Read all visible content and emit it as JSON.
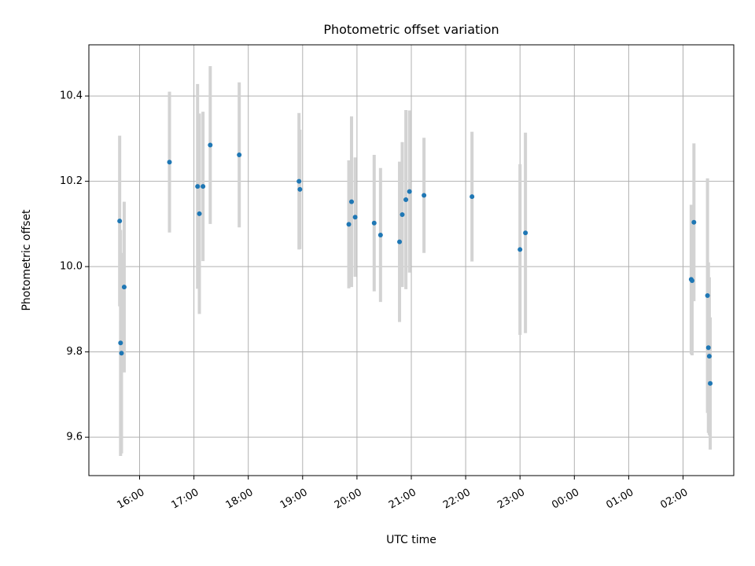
{
  "chart_data": {
    "type": "scatter",
    "title": "Photometric offset variation",
    "xlabel": "UTC time",
    "ylabel": "Photometric offset",
    "x_ticks": [
      "16:00",
      "17:00",
      "18:00",
      "19:00",
      "20:00",
      "21:00",
      "22:00",
      "23:00",
      "00:00",
      "01:00",
      "02:00"
    ],
    "y_ticks": [
      "9.6",
      "9.8",
      "10.0",
      "10.2",
      "10.4"
    ],
    "xlim": [
      "15:04",
      "02:56"
    ],
    "ylim": [
      9.51,
      10.52
    ],
    "grid": true,
    "colors": {
      "points": "#1f77b4",
      "errorbars": "#d3d3d3"
    },
    "points": [
      {
        "x": "15:38",
        "y": 10.107,
        "err": 0.2
      },
      {
        "x": "15:39",
        "y": 9.821,
        "err": 0.265
      },
      {
        "x": "15:40",
        "y": 9.797,
        "err": 0.235
      },
      {
        "x": "15:43",
        "y": 9.952,
        "err": 0.2
      },
      {
        "x": "16:33",
        "y": 10.245,
        "err": 0.165
      },
      {
        "x": "17:04",
        "y": 10.188,
        "err": 0.24
      },
      {
        "x": "17:06",
        "y": 10.124,
        "err": 0.235
      },
      {
        "x": "17:10",
        "y": 10.188,
        "err": 0.175
      },
      {
        "x": "17:18",
        "y": 10.285,
        "err": 0.185
      },
      {
        "x": "17:50",
        "y": 10.262,
        "err": 0.17
      },
      {
        "x": "18:56",
        "y": 10.2,
        "err": 0.16
      },
      {
        "x": "18:57",
        "y": 10.181,
        "err": 0.14
      },
      {
        "x": "19:51",
        "y": 10.099,
        "err": 0.15
      },
      {
        "x": "19:54",
        "y": 10.152,
        "err": 0.2
      },
      {
        "x": "19:58",
        "y": 10.116,
        "err": 0.14
      },
      {
        "x": "20:19",
        "y": 10.102,
        "err": 0.16
      },
      {
        "x": "20:26",
        "y": 10.074,
        "err": 0.157
      },
      {
        "x": "20:47",
        "y": 10.058,
        "err": 0.188
      },
      {
        "x": "20:50",
        "y": 10.122,
        "err": 0.17
      },
      {
        "x": "20:54",
        "y": 10.157,
        "err": 0.21
      },
      {
        "x": "20:58",
        "y": 10.176,
        "err": 0.19
      },
      {
        "x": "21:14",
        "y": 10.167,
        "err": 0.135
      },
      {
        "x": "22:07",
        "y": 10.164,
        "err": 0.152
      },
      {
        "x": "23:00",
        "y": 10.04,
        "err": 0.2
      },
      {
        "x": "23:06",
        "y": 10.079,
        "err": 0.235
      },
      {
        "x": "02:09",
        "y": 9.97,
        "err": 0.175
      },
      {
        "x": "02:10",
        "y": 9.967,
        "err": 0.175
      },
      {
        "x": "02:12",
        "y": 10.104,
        "err": 0.185
      },
      {
        "x": "02:27",
        "y": 9.932,
        "err": 0.275
      },
      {
        "x": "02:28",
        "y": 9.81,
        "err": 0.2
      },
      {
        "x": "02:29",
        "y": 9.79,
        "err": 0.185
      },
      {
        "x": "02:30",
        "y": 9.726,
        "err": 0.155
      }
    ]
  }
}
